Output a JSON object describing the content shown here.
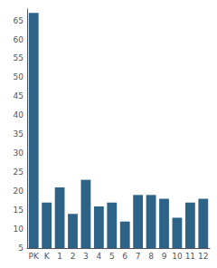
{
  "chart_data": {
    "type": "bar",
    "categories": [
      "PK",
      "K",
      "1",
      "2",
      "3",
      "4",
      "5",
      "6",
      "7",
      "8",
      "9",
      "10",
      "11",
      "12"
    ],
    "values": [
      67,
      17,
      21,
      14,
      23,
      16,
      17,
      12,
      19,
      19,
      18,
      13,
      17,
      18
    ],
    "color": "#2e6388",
    "ylim": [
      5,
      68
    ],
    "yticks": [
      5,
      10,
      15,
      20,
      25,
      30,
      35,
      40,
      45,
      50,
      55,
      60,
      65
    ],
    "grid": false
  }
}
